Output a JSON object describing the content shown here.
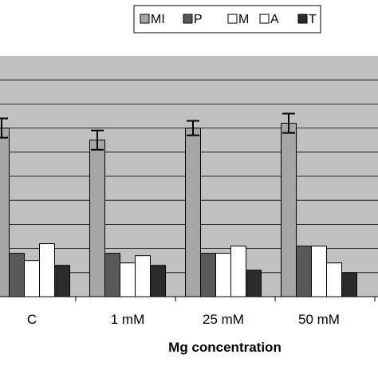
{
  "chart_data": {
    "type": "bar",
    "xlabel": "Mg concentration",
    "ylabel": "",
    "categories": [
      "C",
      "1 mM",
      "25 mM",
      "50 mM"
    ],
    "ylim": [
      0,
      100
    ],
    "grid": "horizontal",
    "legend_position": "top-right",
    "series": [
      {
        "name": "MI",
        "color": "#a6a6a6",
        "values": [
          70,
          65,
          70,
          72
        ],
        "errors": [
          4,
          4,
          3,
          4
        ]
      },
      {
        "name": "P",
        "color": "#595959",
        "values": [
          18,
          18,
          18,
          21
        ]
      },
      {
        "name": "M",
        "color": "#ffffff",
        "values": [
          15,
          14,
          18,
          21
        ]
      },
      {
        "name": "A",
        "color": "#ffffff",
        "values": [
          22,
          17,
          21,
          14
        ]
      },
      {
        "name": "T",
        "color": "#2b2b2b",
        "values": [
          13,
          13,
          11,
          10
        ]
      }
    ]
  }
}
